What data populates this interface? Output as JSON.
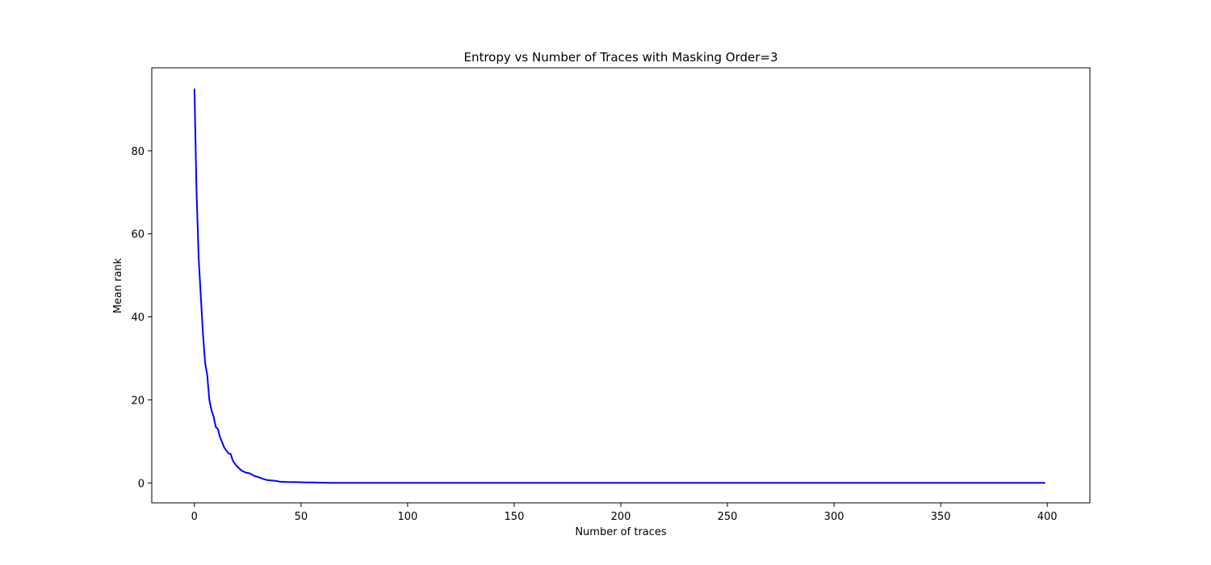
{
  "chart_data": {
    "type": "line",
    "title": "Entropy vs Number of Traces with Masking Order=3",
    "xlabel": "Number of traces",
    "ylabel": "Mean rank",
    "xlim": [
      -20,
      420
    ],
    "ylim": [
      -4.8,
      100
    ],
    "xticks": [
      0,
      50,
      100,
      150,
      200,
      250,
      300,
      350,
      400
    ],
    "yticks": [
      0,
      20,
      40,
      60,
      80
    ],
    "grid": false,
    "legend": "none",
    "series": [
      {
        "color": "#0000ff",
        "x": [
          0,
          1,
          2,
          3,
          4,
          5,
          6,
          7,
          8,
          9,
          10,
          11,
          12,
          13,
          14,
          15,
          16,
          17,
          18,
          19,
          20,
          22,
          24,
          26,
          28,
          30,
          32,
          34,
          36,
          38,
          40,
          43,
          46,
          50,
          55,
          60,
          63,
          70,
          100,
          150,
          200,
          250,
          300,
          350,
          399
        ],
        "y": [
          95,
          70,
          54,
          45,
          36,
          29,
          26,
          20,
          17.5,
          16,
          13.5,
          13,
          11,
          9.8,
          8.5,
          7.8,
          7.1,
          7,
          5.4,
          4.6,
          4,
          3,
          2.5,
          2.3,
          1.7,
          1.4,
          1.0,
          0.7,
          0.6,
          0.5,
          0.3,
          0.22,
          0.2,
          0.15,
          0.1,
          0.05,
          0,
          0,
          0,
          0,
          0,
          0,
          0,
          0,
          0
        ]
      }
    ]
  }
}
